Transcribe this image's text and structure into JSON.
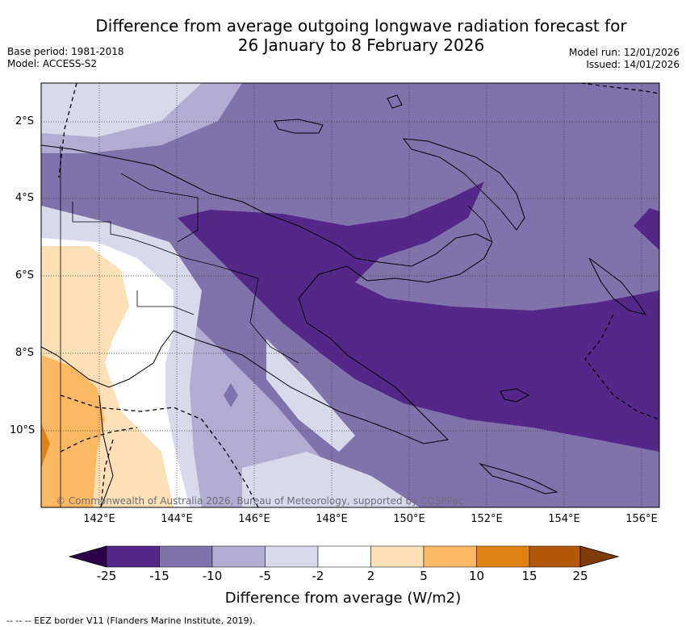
{
  "title": {
    "line1": "Difference from average outgoing longwave radiation forecast for",
    "line2": "26 January to 8 February 2026"
  },
  "meta": {
    "base_period": "Base period: 1981-2018",
    "model": "Model: ACCESS-S2",
    "model_run": "Model run: 12/01/2026",
    "issued": "Issued: 14/01/2026"
  },
  "map": {
    "lat_labels": [
      "2°S",
      "4°S",
      "6°S",
      "8°S",
      "10°S"
    ],
    "lon_labels": [
      "142°E",
      "144°E",
      "146°E",
      "148°E",
      "150°E",
      "152°E",
      "154°E",
      "156°E"
    ],
    "copyright": "© Commonwealth of Australia 2026, Bureau of Meteorology, supported by COSPPac"
  },
  "colorbar": {
    "ticks": [
      "-25",
      "-15",
      "-10",
      "-5",
      "-2",
      "2",
      "5",
      "10",
      "15",
      "25"
    ],
    "colors": [
      "#2d004b",
      "#542788",
      "#8073ac",
      "#b2abd2",
      "#d8daeb",
      "#ffffff",
      "#fee0b6",
      "#fdb863",
      "#e08214",
      "#b35806",
      "#7f3b08"
    ],
    "label": "Difference from average (W/m2)"
  },
  "footnote": "-- --  -- EEZ border V11 (Flanders Marine Institute, 2019)."
}
